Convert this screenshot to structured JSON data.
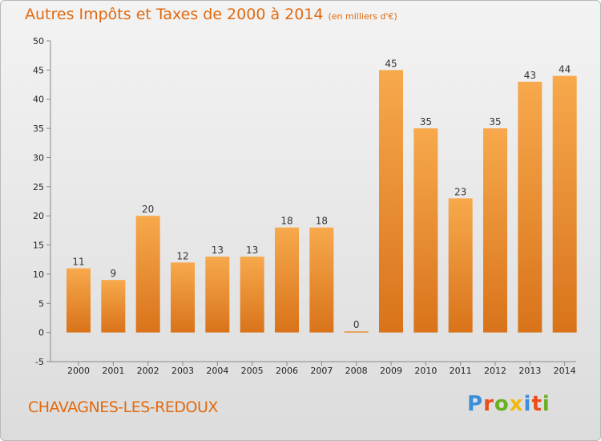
{
  "header": {
    "title": "Autres Impôts et Taxes de 2000 à 2014",
    "unit": "(en milliers d'€)"
  },
  "footer": {
    "commune": "CHAVAGNES-LES-REDOUX",
    "logo": "Proxiti",
    "logo_colors": [
      "#3a8fd8",
      "#e94e1b",
      "#6ab023",
      "#f2b90c",
      "#3a8fd8",
      "#e94e1b",
      "#6ab023"
    ]
  },
  "colors": {
    "bar_light": "#f7a94c",
    "bar_dark": "#d9731a",
    "accent": "#e06a10"
  },
  "chart_data": {
    "type": "bar",
    "categories": [
      "2000",
      "2001",
      "2002",
      "2003",
      "2004",
      "2005",
      "2006",
      "2007",
      "2008",
      "2009",
      "2010",
      "2011",
      "2012",
      "2013",
      "2014"
    ],
    "values": [
      11,
      9,
      20,
      12,
      13,
      13,
      18,
      18,
      0,
      45,
      35,
      23,
      35,
      43,
      44
    ],
    "title": "Autres Impôts et Taxes de 2000 à 2014",
    "xlabel": "",
    "ylabel": "",
    "ylim": [
      -5,
      50
    ],
    "yticks": [
      -5,
      0,
      5,
      10,
      15,
      20,
      25,
      30,
      35,
      40,
      45,
      50
    ],
    "grid": false,
    "legend": "none"
  }
}
